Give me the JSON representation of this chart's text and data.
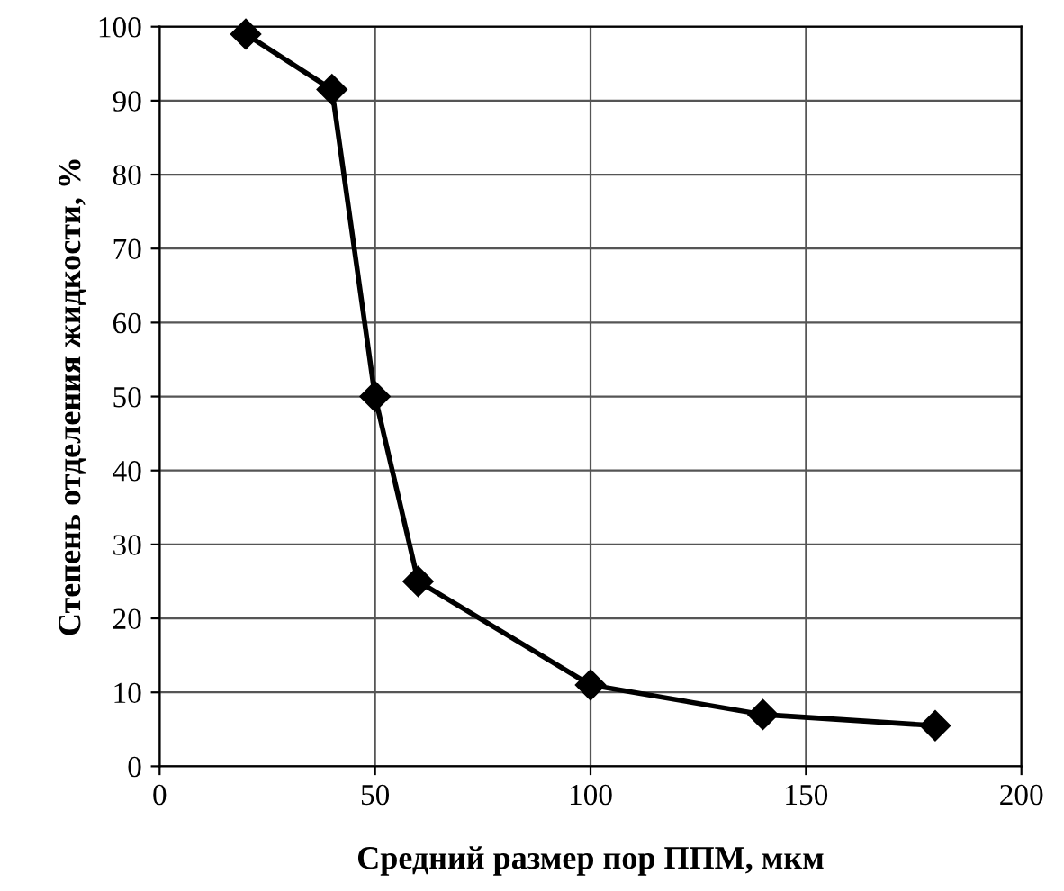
{
  "chart_data": {
    "type": "line",
    "xlabel": "Средний размер пор ППМ, мкм",
    "ylabel": "Степень отделения жидкости, %",
    "x": [
      20,
      40,
      50,
      60,
      100,
      140,
      180
    ],
    "values": [
      99,
      91.5,
      50,
      25,
      11,
      7,
      5.5
    ],
    "color": "#000000",
    "marker": "diamond",
    "line_style": "solid",
    "xlim": [
      0,
      200
    ],
    "xticks": [
      0,
      50,
      100,
      150,
      200
    ],
    "ylim": [
      0,
      100
    ],
    "yticks": [
      0,
      10,
      20,
      30,
      40,
      50,
      60,
      70,
      80,
      90,
      100
    ],
    "grid": true
  }
}
